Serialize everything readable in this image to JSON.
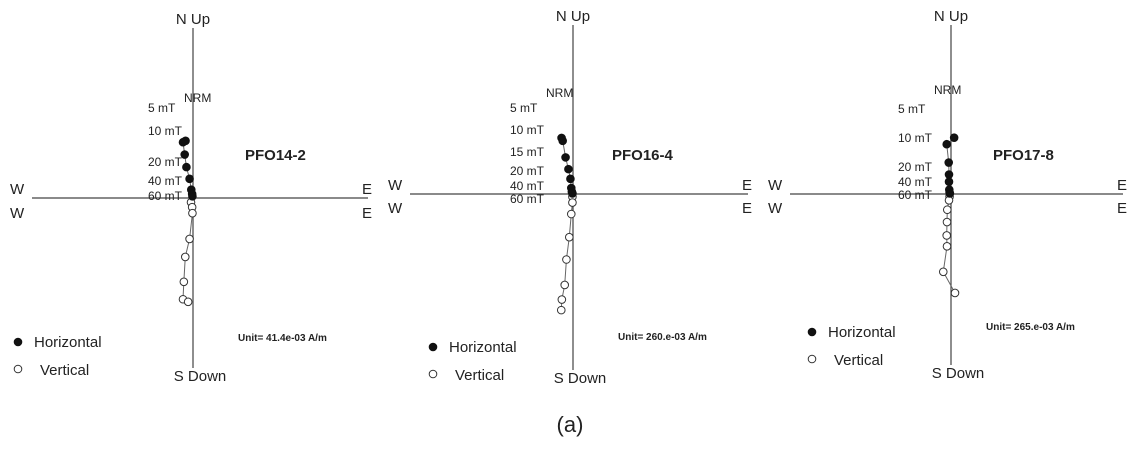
{
  "caption": "(a)",
  "legend": {
    "horizontal": "Horizontal",
    "vertical": "Vertical"
  },
  "chart_data": [
    {
      "type": "scatter",
      "title": "PFO14-2",
      "unit": "Unit= 41.4e-03 A/m",
      "axis_labels": {
        "north": "N Up",
        "south": "S Down",
        "west_upper": "W",
        "west_lower": "W",
        "east_upper": "E",
        "east_lower": "E"
      },
      "step_labels": [
        "NRM",
        "5 mT",
        "10 mT",
        "20 mT",
        "40 mT",
        "60 mT"
      ],
      "series": [
        {
          "name": "Horizontal",
          "points": [
            [
              -0.26,
              2.0
            ],
            [
              -0.35,
              1.95
            ],
            [
              -0.29,
              1.52
            ],
            [
              -0.23,
              1.08
            ],
            [
              -0.12,
              0.67
            ],
            [
              -0.06,
              0.29
            ],
            [
              -0.03,
              0.14
            ],
            [
              -0.02,
              0.06
            ]
          ]
        },
        {
          "name": "Vertical",
          "points": [
            [
              -0.07,
              -0.15
            ],
            [
              -0.03,
              -0.32
            ],
            [
              -0.02,
              -0.53
            ],
            [
              -0.12,
              -1.43
            ],
            [
              -0.27,
              -2.06
            ],
            [
              -0.32,
              -2.93
            ],
            [
              -0.35,
              -3.54
            ],
            [
              -0.17,
              -3.63
            ]
          ]
        }
      ]
    },
    {
      "type": "scatter",
      "title": "PFO16-4",
      "unit": "Unit= 260.e-03 A/m",
      "axis_labels": {
        "north": "N Up",
        "south": "S Down",
        "west_upper": "W",
        "west_lower": "W",
        "east_upper": "E",
        "east_lower": "E"
      },
      "step_labels": [
        "NRM",
        "5 mT",
        "10 mT",
        "15 mT",
        "20 mT",
        "40 mT",
        "60 mT"
      ],
      "series": [
        {
          "name": "Horizontal",
          "points": [
            [
              -0.4,
              1.96
            ],
            [
              -0.36,
              1.86
            ],
            [
              -0.26,
              1.28
            ],
            [
              -0.16,
              0.87
            ],
            [
              -0.09,
              0.53
            ],
            [
              -0.06,
              0.21
            ],
            [
              -0.04,
              0.08
            ],
            [
              -0.02,
              0.02
            ]
          ]
        },
        {
          "name": "Vertical",
          "points": [
            [
              -0.02,
              -0.1
            ],
            [
              -0.02,
              -0.3
            ],
            [
              -0.06,
              -0.7
            ],
            [
              -0.13,
              -1.51
            ],
            [
              -0.23,
              -2.29
            ],
            [
              -0.29,
              -3.18
            ],
            [
              -0.39,
              -3.69
            ],
            [
              -0.41,
              -4.06
            ]
          ]
        }
      ]
    },
    {
      "type": "scatter",
      "title": "PFO17-8",
      "unit": "Unit= 265.e-03 A/m",
      "axis_labels": {
        "north": "N Up",
        "south": "S Down",
        "west_upper": "W",
        "west_lower": "W",
        "east_upper": "E",
        "east_lower": "E"
      },
      "step_labels": [
        "NRM",
        "5 mT",
        "10 mT",
        "20 mT",
        "40 mT",
        "60 mT"
      ],
      "series": [
        {
          "name": "Horizontal",
          "points": [
            [
              0.11,
              1.97
            ],
            [
              -0.15,
              1.74
            ],
            [
              -0.08,
              1.1
            ],
            [
              -0.07,
              0.68
            ],
            [
              -0.07,
              0.43
            ],
            [
              -0.06,
              0.15
            ],
            [
              -0.05,
              0.06
            ],
            [
              -0.04,
              0.02
            ]
          ]
        },
        {
          "name": "Vertical",
          "points": [
            [
              -0.05,
              -0.09
            ],
            [
              -0.07,
              -0.22
            ],
            [
              -0.13,
              -0.55
            ],
            [
              -0.14,
              -0.98
            ],
            [
              -0.15,
              -1.45
            ],
            [
              -0.14,
              -1.83
            ],
            [
              -0.27,
              -2.72
            ],
            [
              0.14,
              -3.46
            ]
          ]
        }
      ]
    }
  ]
}
